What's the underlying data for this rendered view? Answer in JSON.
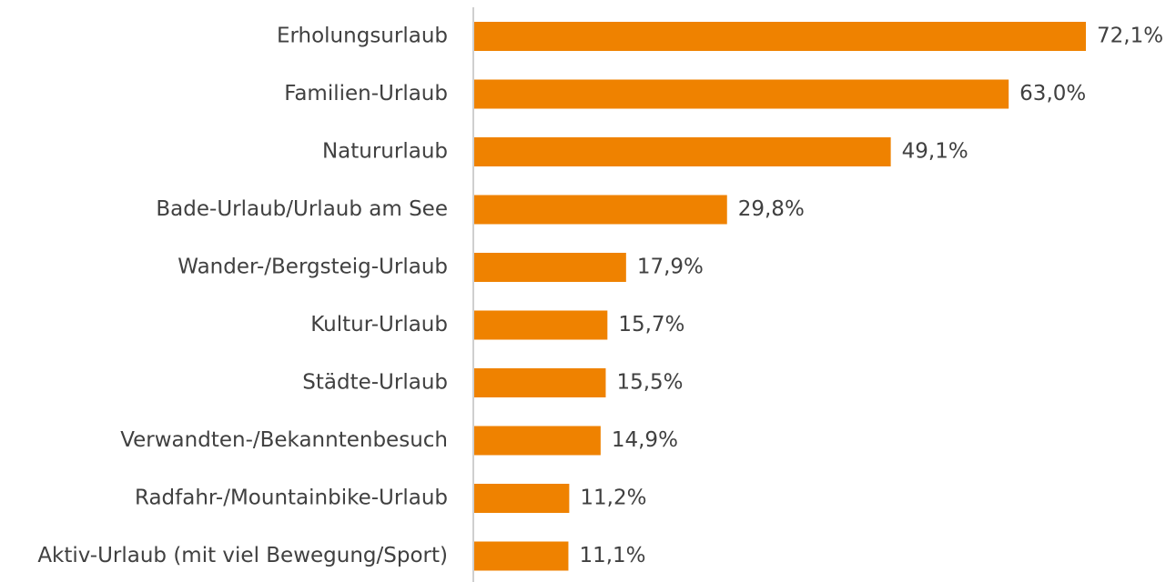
{
  "chart_data": {
    "type": "bar",
    "orientation": "horizontal",
    "categories": [
      "Erholungsurlaub",
      "Familien-Urlaub",
      "Natururlaub",
      "Bade-Urlaub/Urlaub am See",
      "Wander-/Bergsteig-Urlaub",
      "Kultur-Urlaub",
      "Städte-Urlaub",
      "Verwandten-/Bekanntenbesuch",
      "Radfahr-/Mountainbike-Urlaub",
      "Aktiv-Urlaub (mit viel Bewegung/Sport)"
    ],
    "values": [
      72.1,
      63.0,
      49.1,
      29.8,
      17.9,
      15.7,
      15.5,
      14.9,
      11.2,
      11.1
    ],
    "value_labels": [
      "72,1%",
      "63,0%",
      "49,1%",
      "29,8%",
      "17,9%",
      "15,7%",
      "15,5%",
      "14,9%",
      "11,2%",
      "11,1%"
    ],
    "color": "#ef8200"
  }
}
